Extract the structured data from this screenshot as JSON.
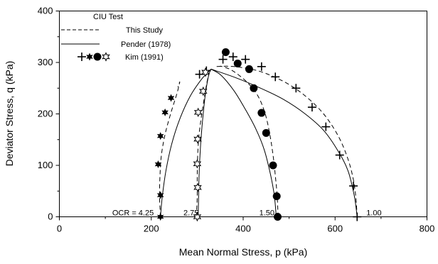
{
  "chart_data": {
    "type": "scatter",
    "xlabel": "Mean Normal Stress, p (kPa)",
    "ylabel": "Deviator Stress, q (kPa)",
    "xlim": [
      0,
      800
    ],
    "ylim": [
      0,
      400
    ],
    "xticks": [
      0,
      200,
      400,
      600,
      800
    ],
    "yticks": [
      0,
      100,
      200,
      300,
      400
    ],
    "grid": false,
    "legend": {
      "placement": "top-left",
      "title": "CIU Test",
      "entries": [
        {
          "label": "This Study",
          "style": "dashed"
        },
        {
          "label": "Pender (1978)",
          "style": "solid"
        },
        {
          "label": "Kim (1991)",
          "style": "markers",
          "markers": [
            "plus",
            "star6",
            "circle",
            "star6-open"
          ]
        }
      ]
    },
    "ocr_labels": [
      {
        "text": "OCR = 4.25",
        "p": 115,
        "q": 8
      },
      {
        "text": "2.75",
        "p": 270,
        "q": 8
      },
      {
        "text": "1.50",
        "p": 435,
        "q": 8
      },
      {
        "text": "1.00",
        "p": 668,
        "q": 8
      }
    ],
    "series": [
      {
        "name": "This Study",
        "style": "dashed",
        "points": [
          [
            220,
            0
          ],
          [
            218,
            40
          ],
          [
            219,
            80
          ],
          [
            222,
            120
          ],
          [
            230,
            160
          ],
          [
            242,
            200
          ],
          [
            256,
            240
          ],
          [
            262,
            262
          ],
          [
            258,
            252
          ]
        ]
      },
      {
        "name": "This Study",
        "style": "dashed",
        "points": [
          [
            298,
            0
          ],
          [
            300,
            40
          ],
          [
            300,
            80
          ],
          [
            301,
            120
          ],
          [
            304,
            160
          ],
          [
            310,
            200
          ],
          [
            317,
            240
          ],
          [
            322,
            265
          ],
          [
            326,
            280
          ]
        ]
      },
      {
        "name": "This Study",
        "style": "dashed",
        "points": [
          [
            476,
            0
          ],
          [
            474,
            40
          ],
          [
            470,
            80
          ],
          [
            465,
            120
          ],
          [
            458,
            160
          ],
          [
            448,
            200
          ],
          [
            432,
            235
          ],
          [
            408,
            262
          ],
          [
            375,
            285
          ],
          [
            350,
            293
          ]
        ]
      },
      {
        "name": "This Study",
        "style": "dashed",
        "points": [
          [
            648,
            0
          ],
          [
            645,
            40
          ],
          [
            638,
            80
          ],
          [
            625,
            120
          ],
          [
            605,
            160
          ],
          [
            575,
            200
          ],
          [
            535,
            235
          ],
          [
            490,
            262
          ],
          [
            435,
            283
          ],
          [
            380,
            292
          ],
          [
            340,
            292
          ]
        ]
      },
      {
        "name": "Pender (1978)",
        "style": "solid",
        "points": [
          [
            220,
            0
          ],
          [
            224,
            40
          ],
          [
            232,
            90
          ],
          [
            244,
            140
          ],
          [
            262,
            190
          ],
          [
            285,
            235
          ],
          [
            310,
            268
          ],
          [
            330,
            287
          ]
        ]
      },
      {
        "name": "Pender (1978)",
        "style": "solid",
        "points": [
          [
            302,
            0
          ],
          [
            303,
            40
          ],
          [
            304,
            80
          ],
          [
            306,
            120
          ],
          [
            309,
            160
          ],
          [
            313,
            200
          ],
          [
            318,
            240
          ],
          [
            325,
            275
          ],
          [
            330,
            287
          ]
        ]
      },
      {
        "name": "Pender (1978)",
        "style": "solid",
        "points": [
          [
            472,
            0
          ],
          [
            468,
            40
          ],
          [
            460,
            80
          ],
          [
            446,
            130
          ],
          [
            428,
            170
          ],
          [
            404,
            210
          ],
          [
            380,
            245
          ],
          [
            352,
            275
          ],
          [
            330,
            287
          ]
        ]
      },
      {
        "name": "Pender (1978)",
        "style": "solid",
        "points": [
          [
            648,
            0
          ],
          [
            642,
            40
          ],
          [
            628,
            90
          ],
          [
            605,
            130
          ],
          [
            575,
            168
          ],
          [
            535,
            200
          ],
          [
            488,
            228
          ],
          [
            438,
            250
          ],
          [
            385,
            270
          ],
          [
            330,
            287
          ]
        ]
      },
      {
        "name": "Kim (1991)",
        "marker": "plus",
        "points": [
          [
            648,
            0
          ],
          [
            640,
            60
          ],
          [
            610,
            120
          ],
          [
            580,
            175
          ],
          [
            550,
            213
          ],
          [
            515,
            250
          ],
          [
            470,
            272
          ],
          [
            440,
            292
          ],
          [
            405,
            306
          ],
          [
            378,
            311
          ],
          [
            356,
            306
          ],
          [
            320,
            284
          ],
          [
            305,
            277
          ]
        ]
      },
      {
        "name": "Kim (1991)",
        "marker": "circle",
        "points": [
          [
            475,
            0
          ],
          [
            473,
            40
          ],
          [
            465,
            100
          ],
          [
            450,
            163
          ],
          [
            440,
            202
          ],
          [
            423,
            250
          ],
          [
            413,
            287
          ],
          [
            388,
            298
          ],
          [
            362,
            320
          ]
        ]
      },
      {
        "name": "Kim (1991)",
        "marker": "star6",
        "points": [
          [
            220,
            0
          ],
          [
            220,
            42
          ],
          [
            215,
            102
          ],
          [
            220,
            157
          ],
          [
            230,
            203
          ],
          [
            243,
            231
          ]
        ]
      },
      {
        "name": "Kim (1991)",
        "marker": "star6-open",
        "points": [
          [
            300,
            0
          ],
          [
            301,
            57
          ],
          [
            300,
            103
          ],
          [
            301,
            151
          ],
          [
            302,
            203
          ],
          [
            313,
            244
          ],
          [
            318,
            281
          ]
        ]
      }
    ]
  }
}
